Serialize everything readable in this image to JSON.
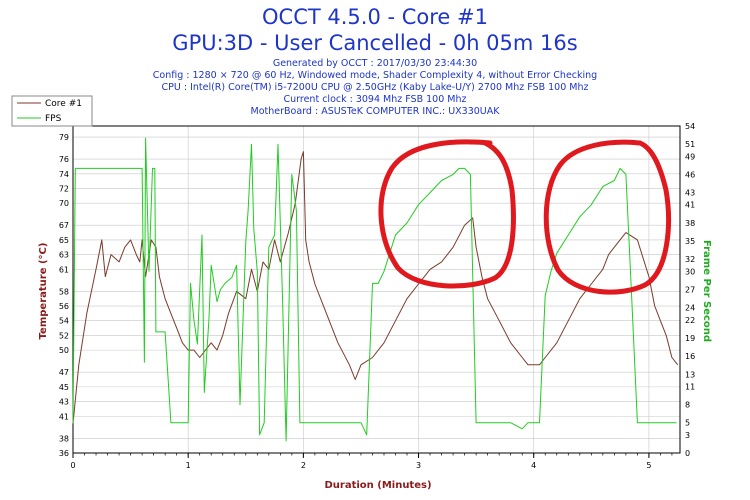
{
  "header": {
    "title": "OCCT 4.5.0 - Core #1",
    "subtitle": "GPU:3D - User Cancelled - 0h 05m 16s",
    "generated": "Generated by OCCT : 2017/03/30 23:44:30",
    "config": "Config : 1280 × 720 @ 60 Hz, Windowed mode, Shader Complexity 4, without Error Checking",
    "cpu": "CPU : Intel(R) Core(TM) i5-7200U CPU @ 2.50GHz (Kaby Lake-U/Y) 2700 Mhz FSB 100 Mhz",
    "clock": "Current clock : 3094 Mhz FSB 100 Mhz",
    "motherboard": "MotherBoard : ASUSTeK COMPUTER INC.: UX330UAK"
  },
  "colors": {
    "title": "#1e35c8",
    "core_line": "#7a3a2a",
    "fps_line": "#22cc22",
    "left_axis_label": "#8b1a1a",
    "right_axis_label": "#22aa22",
    "grid": "#c8c8c8",
    "annotation": "#e0191e"
  },
  "chart_data": {
    "type": "line",
    "xlabel": "Duration (Minutes)",
    "ylabel_left": "Temperature (°C)",
    "ylabel_right": "Frame Per Second",
    "xlim": [
      0,
      5.27
    ],
    "ylim_left": [
      36,
      80.5
    ],
    "ylim_right": [
      0,
      54
    ],
    "x_ticks": [
      "0",
      "1",
      "2",
      "3",
      "4",
      "5"
    ],
    "y_left_ticks": [
      "36",
      "38",
      "41",
      "43",
      "45",
      "47",
      "50",
      "52",
      "54",
      "56",
      "58",
      "61",
      "63",
      "65",
      "67",
      "70",
      "72",
      "74",
      "76",
      "79"
    ],
    "y_right_ticks": [
      "0",
      "3",
      "5",
      "8",
      "11",
      "13",
      "16",
      "19",
      "22",
      "24",
      "27",
      "30",
      "32",
      "35",
      "38",
      "41",
      "43",
      "46",
      "49",
      "51",
      "54"
    ],
    "grid": true,
    "legend_position": "top-left",
    "legend": [
      "Core #1",
      "FPS"
    ],
    "annotations": [
      "hand-drawn red circle around the rising segment at about 2.7–3.5 min",
      "hand-drawn red circle around the rising segment at about 4.1–5.0 min"
    ],
    "series": [
      {
        "name": "Core #1",
        "axis": "left",
        "points": [
          [
            0,
            40
          ],
          [
            0.05,
            48
          ],
          [
            0.12,
            55
          ],
          [
            0.2,
            61
          ],
          [
            0.25,
            65
          ],
          [
            0.28,
            60
          ],
          [
            0.33,
            63
          ],
          [
            0.4,
            62
          ],
          [
            0.45,
            64
          ],
          [
            0.5,
            65
          ],
          [
            0.55,
            63
          ],
          [
            0.58,
            62
          ],
          [
            0.6,
            65
          ],
          [
            0.63,
            60
          ],
          [
            0.68,
            65
          ],
          [
            0.72,
            64
          ],
          [
            0.75,
            60
          ],
          [
            0.8,
            57
          ],
          [
            0.85,
            55
          ],
          [
            0.9,
            53
          ],
          [
            0.95,
            51
          ],
          [
            1.0,
            50
          ],
          [
            1.05,
            50
          ],
          [
            1.1,
            49
          ],
          [
            1.15,
            50
          ],
          [
            1.2,
            51
          ],
          [
            1.25,
            50
          ],
          [
            1.3,
            52
          ],
          [
            1.35,
            55
          ],
          [
            1.42,
            58
          ],
          [
            1.5,
            57
          ],
          [
            1.55,
            61
          ],
          [
            1.6,
            58
          ],
          [
            1.65,
            62
          ],
          [
            1.7,
            61
          ],
          [
            1.75,
            65
          ],
          [
            1.8,
            62
          ],
          [
            1.87,
            66
          ],
          [
            1.93,
            70
          ],
          [
            1.98,
            76
          ],
          [
            2.0,
            77
          ],
          [
            2.02,
            65
          ],
          [
            2.05,
            62
          ],
          [
            2.1,
            59
          ],
          [
            2.2,
            55
          ],
          [
            2.3,
            51
          ],
          [
            2.4,
            48
          ],
          [
            2.45,
            46
          ],
          [
            2.5,
            48
          ],
          [
            2.6,
            49
          ],
          [
            2.7,
            51
          ],
          [
            2.8,
            54
          ],
          [
            2.9,
            57
          ],
          [
            3.0,
            59
          ],
          [
            3.1,
            61
          ],
          [
            3.2,
            62
          ],
          [
            3.3,
            64
          ],
          [
            3.4,
            67
          ],
          [
            3.47,
            68
          ],
          [
            3.5,
            64
          ],
          [
            3.55,
            60
          ],
          [
            3.6,
            57
          ],
          [
            3.7,
            54
          ],
          [
            3.8,
            51
          ],
          [
            3.9,
            49
          ],
          [
            3.95,
            48
          ],
          [
            4.05,
            48
          ],
          [
            4.1,
            49
          ],
          [
            4.2,
            51
          ],
          [
            4.3,
            54
          ],
          [
            4.4,
            57
          ],
          [
            4.5,
            59
          ],
          [
            4.6,
            61
          ],
          [
            4.65,
            63
          ],
          [
            4.7,
            64
          ],
          [
            4.8,
            66
          ],
          [
            4.9,
            65
          ],
          [
            5.0,
            60
          ],
          [
            5.05,
            56
          ],
          [
            5.1,
            54
          ],
          [
            5.15,
            52
          ],
          [
            5.2,
            49
          ],
          [
            5.25,
            48
          ]
        ]
      },
      {
        "name": "FPS",
        "axis": "right",
        "points": [
          [
            0,
            5
          ],
          [
            0.02,
            47
          ],
          [
            0.3,
            47
          ],
          [
            0.4,
            47
          ],
          [
            0.5,
            47
          ],
          [
            0.55,
            47
          ],
          [
            0.6,
            47
          ],
          [
            0.62,
            15
          ],
          [
            0.63,
            52
          ],
          [
            0.66,
            30
          ],
          [
            0.69,
            47
          ],
          [
            0.71,
            47
          ],
          [
            0.72,
            20
          ],
          [
            0.8,
            20
          ],
          [
            0.85,
            5
          ],
          [
            0.9,
            5
          ],
          [
            0.95,
            5
          ],
          [
            1.0,
            5
          ],
          [
            1.02,
            28
          ],
          [
            1.05,
            22
          ],
          [
            1.08,
            18
          ],
          [
            1.12,
            36
          ],
          [
            1.14,
            10
          ],
          [
            1.18,
            22
          ],
          [
            1.2,
            31
          ],
          [
            1.25,
            25
          ],
          [
            1.28,
            27
          ],
          [
            1.32,
            28
          ],
          [
            1.38,
            29
          ],
          [
            1.42,
            31
          ],
          [
            1.45,
            8
          ],
          [
            1.5,
            35
          ],
          [
            1.52,
            40
          ],
          [
            1.55,
            51
          ],
          [
            1.57,
            37
          ],
          [
            1.6,
            30
          ],
          [
            1.62,
            3
          ],
          [
            1.66,
            5
          ],
          [
            1.7,
            34
          ],
          [
            1.75,
            36
          ],
          [
            1.78,
            51
          ],
          [
            1.82,
            25
          ],
          [
            1.85,
            2
          ],
          [
            1.9,
            46
          ],
          [
            1.94,
            40
          ],
          [
            1.97,
            5
          ],
          [
            2.02,
            5
          ],
          [
            2.05,
            5
          ],
          [
            2.1,
            5
          ],
          [
            2.2,
            5
          ],
          [
            2.3,
            5
          ],
          [
            2.4,
            5
          ],
          [
            2.45,
            5
          ],
          [
            2.5,
            5
          ],
          [
            2.55,
            3
          ],
          [
            2.6,
            28
          ],
          [
            2.65,
            28
          ],
          [
            2.7,
            30
          ],
          [
            2.75,
            33
          ],
          [
            2.8,
            36
          ],
          [
            2.9,
            38
          ],
          [
            3.0,
            41
          ],
          [
            3.1,
            43
          ],
          [
            3.2,
            45
          ],
          [
            3.3,
            46
          ],
          [
            3.35,
            47
          ],
          [
            3.4,
            47
          ],
          [
            3.45,
            46
          ],
          [
            3.5,
            5
          ],
          [
            3.6,
            5
          ],
          [
            3.7,
            5
          ],
          [
            3.8,
            5
          ],
          [
            3.9,
            4
          ],
          [
            3.95,
            5
          ],
          [
            4.0,
            5
          ],
          [
            4.05,
            5
          ],
          [
            4.1,
            26
          ],
          [
            4.15,
            30
          ],
          [
            4.2,
            33
          ],
          [
            4.3,
            36
          ],
          [
            4.4,
            39
          ],
          [
            4.5,
            41
          ],
          [
            4.6,
            44
          ],
          [
            4.7,
            45
          ],
          [
            4.75,
            47
          ],
          [
            4.8,
            46
          ],
          [
            4.85,
            26
          ],
          [
            4.9,
            5
          ],
          [
            5.0,
            5
          ],
          [
            5.1,
            5
          ],
          [
            5.2,
            5
          ],
          [
            5.24,
            5
          ]
        ]
      }
    ]
  }
}
